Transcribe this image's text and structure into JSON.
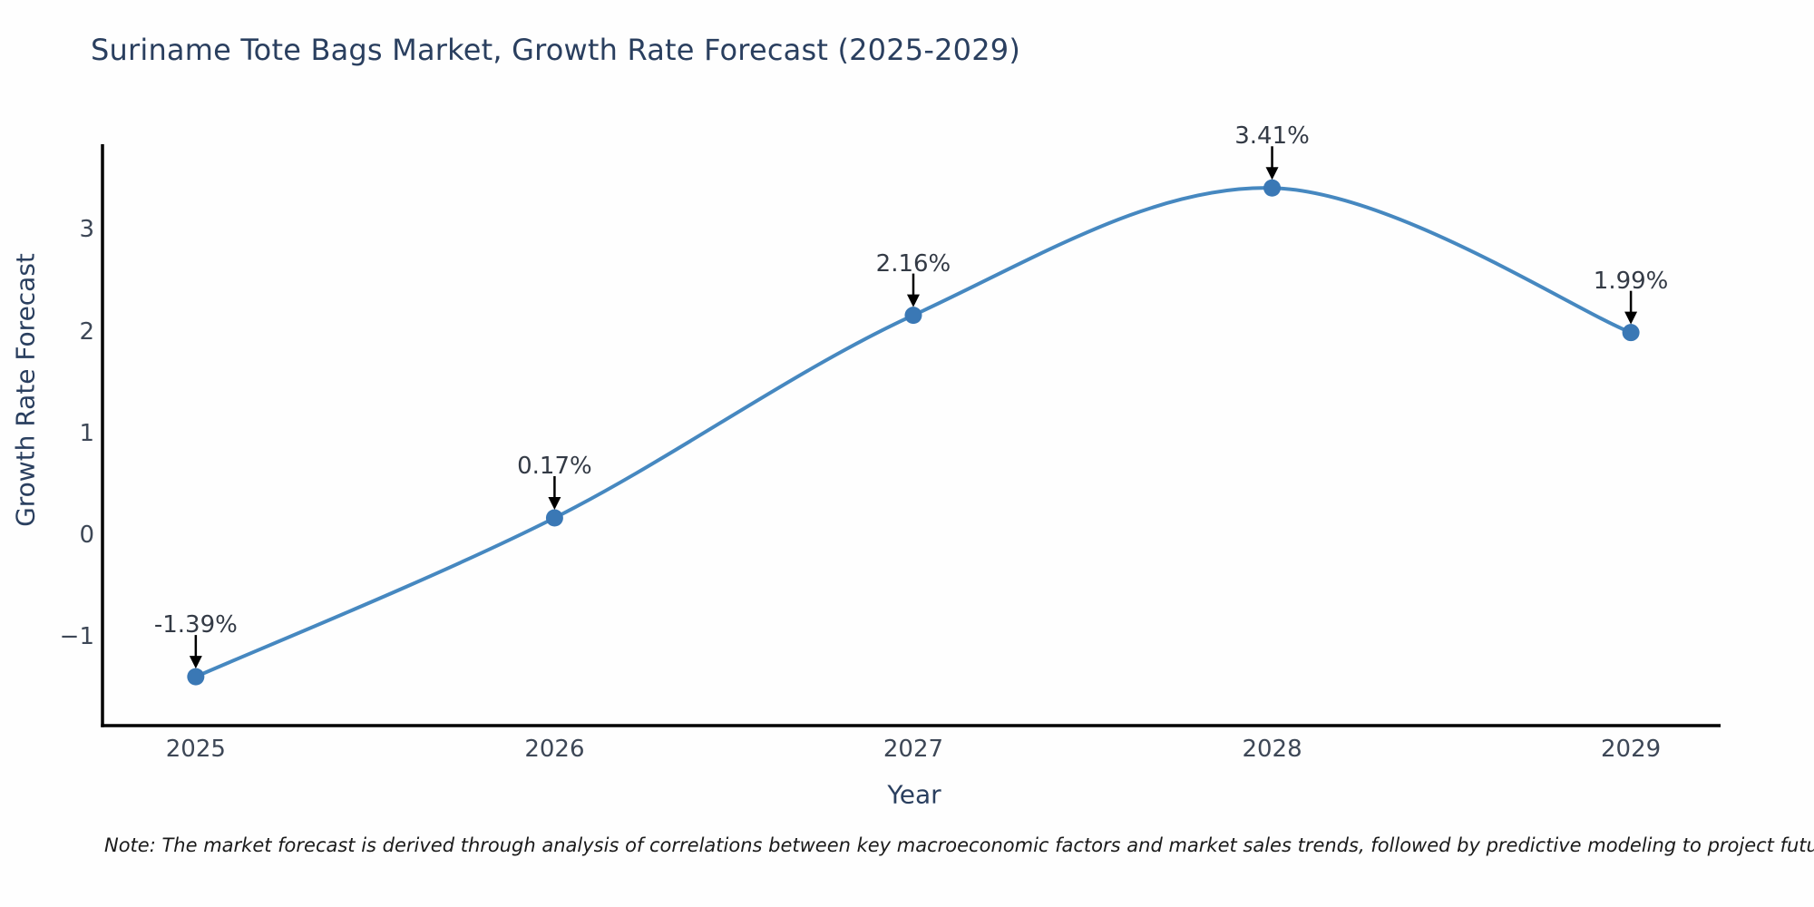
{
  "page": {
    "footnote": "Note: The market forecast is derived through analysis of correlations between key macroeconomic factors and market sales trends, followed by predictive modeling to project future sales"
  },
  "chart_data": {
    "type": "line",
    "title": "Suriname Tote Bags Market, Growth Rate Forecast (2025-2029)",
    "xlabel": "Year",
    "ylabel": "Growth Rate Forecast",
    "series_name": "Growth Rate Forecast",
    "x": [
      2025,
      2026,
      2027,
      2028,
      2029
    ],
    "y": [
      -1.39,
      0.17,
      2.16,
      3.41,
      1.99
    ],
    "point_labels": [
      "-1.39%",
      "0.17%",
      "2.16%",
      "3.41%",
      "1.99%"
    ],
    "xticks": [
      {
        "value": 2025,
        "label": "2025"
      },
      {
        "value": 2026,
        "label": "2026"
      },
      {
        "value": 2027,
        "label": "2027"
      },
      {
        "value": 2028,
        "label": "2028"
      },
      {
        "value": 2029,
        "label": "2029"
      }
    ],
    "yticks": [
      {
        "value": -1,
        "label": "−1"
      },
      {
        "value": 0,
        "label": "0"
      },
      {
        "value": 1,
        "label": "1"
      },
      {
        "value": 2,
        "label": "2"
      },
      {
        "value": 3,
        "label": "3"
      }
    ],
    "xlim": [
      2024.74,
      2029.25
    ],
    "ylim": [
      -1.87,
      3.84
    ],
    "grid": false,
    "legend": false,
    "annotations_have_arrows": true,
    "colors": {
      "line": "#4688c0",
      "marker": "#3a78b5",
      "axis": "#000000",
      "arrow": "#000000",
      "title_text": "#2a3f5f",
      "axis_label_text": "#2a3f5f",
      "tick_text": "#3d4756",
      "annotation_text": "#333a45",
      "note_text": "#1a1a1a"
    }
  }
}
